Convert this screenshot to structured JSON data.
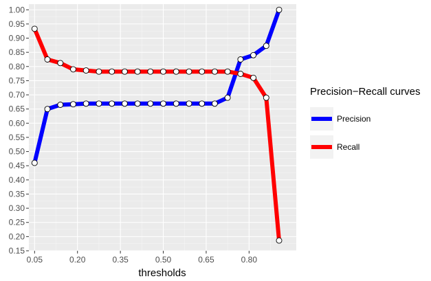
{
  "chart_data": {
    "type": "line",
    "xlabel": "thresholds",
    "ylabel": "",
    "title": "",
    "xlim": [
      0.03,
      0.965
    ],
    "ylim": [
      0.15,
      1.02
    ],
    "x_ticks": [
      "0.05",
      "0.20",
      "0.35",
      "0.50",
      "0.65",
      "0.80"
    ],
    "y_ticks": [
      "0.15",
      "0.20",
      "0.25",
      "0.30",
      "0.35",
      "0.40",
      "0.45",
      "0.50",
      "0.55",
      "0.60",
      "0.65",
      "0.70",
      "0.75",
      "0.80",
      "0.85",
      "0.90",
      "0.95",
      "1.00"
    ],
    "grid": true,
    "legend": {
      "title": "Precision−Recall curves",
      "position": "right",
      "entries": [
        "Precision",
        "Recall"
      ]
    },
    "x": [
      0.05,
      0.095,
      0.14,
      0.185,
      0.23,
      0.275,
      0.32,
      0.365,
      0.41,
      0.455,
      0.5,
      0.545,
      0.59,
      0.635,
      0.68,
      0.725,
      0.77,
      0.815,
      0.86,
      0.905
    ],
    "series": [
      {
        "name": "Precision",
        "color": "#0000ff",
        "values": [
          0.46,
          0.65,
          0.665,
          0.667,
          0.669,
          0.669,
          0.669,
          0.669,
          0.669,
          0.669,
          0.669,
          0.669,
          0.669,
          0.669,
          0.669,
          0.69,
          0.825,
          0.84,
          0.873,
          1.0
        ]
      },
      {
        "name": "Recall",
        "color": "#ff0000",
        "values": [
          0.933,
          0.825,
          0.812,
          0.79,
          0.786,
          0.782,
          0.782,
          0.782,
          0.782,
          0.782,
          0.782,
          0.782,
          0.782,
          0.782,
          0.782,
          0.782,
          0.774,
          0.76,
          0.69,
          0.186
        ]
      }
    ]
  }
}
